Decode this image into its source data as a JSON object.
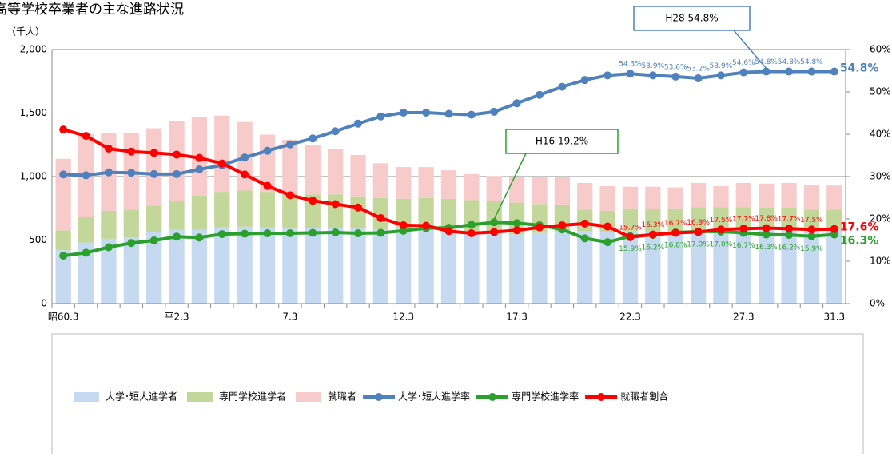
{
  "chart_data": {
    "type": "bar",
    "title": "高等学校卒業者の主な進路状況",
    "y_label": "（千人）",
    "categories": [
      "昭60.3",
      null,
      null,
      null,
      null,
      "平2.3",
      null,
      null,
      null,
      null,
      "7.3",
      null,
      null,
      null,
      null,
      "12.3",
      null,
      null,
      null,
      null,
      "17.3",
      null,
      null,
      null,
      null,
      "22.3",
      null,
      null,
      null,
      null,
      "27.3",
      null,
      null,
      null,
      "31.3"
    ],
    "ylim": [
      0,
      2000
    ],
    "yticks": [
      0,
      500,
      {
        "value": 1000,
        "label": "1,000"
      },
      {
        "value": 1500,
        "label": "1,500"
      },
      {
        "value": 2000,
        "label": "2,000"
      }
    ],
    "y2lim": [
      0,
      60
    ],
    "y2ticks": [
      {
        "value": 0,
        "label": "0%"
      },
      {
        "value": 10,
        "label": "10%"
      },
      {
        "value": 20,
        "label": "20%"
      },
      {
        "value": 30,
        "label": "30%"
      },
      {
        "value": 40,
        "label": "40%"
      },
      {
        "value": 50,
        "label": "50%"
      },
      {
        "value": 60,
        "label": "60%"
      }
    ],
    "grid": true,
    "series": [
      {
        "name": "大学･短大進学者",
        "type": "bar",
        "color": "#c5d9f1",
        "values": [
          420,
          480,
          510,
          520,
          560,
          580,
          580,
          600,
          605,
          600,
          590,
          595,
          595,
          590,
          580,
          600,
          590,
          575,
          560,
          550,
          545,
          555,
          565,
          570,
          560,
          570,
          560,
          570,
          560,
          570,
          580,
          585,
          585,
          580,
          580
        ]
      },
      {
        "name": "専門学校進学者",
        "type": "bar",
        "color": "#c4d79b",
        "values": [
          155,
          205,
          220,
          220,
          210,
          230,
          270,
          280,
          285,
          280,
          280,
          265,
          265,
          255,
          250,
          225,
          240,
          250,
          255,
          255,
          250,
          230,
          215,
          170,
          170,
          180,
          185,
          180,
          200,
          190,
          180,
          170,
          170,
          160,
          160
        ]
      },
      {
        "name": "就職者",
        "type": "bar",
        "color": "#f8cbcb",
        "values": [
          565,
          650,
          610,
          605,
          610,
          630,
          620,
          600,
          540,
          450,
          420,
          385,
          355,
          325,
          275,
          250,
          245,
          225,
          205,
          200,
          205,
          215,
          215,
          210,
          195,
          170,
          175,
          165,
          190,
          165,
          190,
          190,
          195,
          195,
          190
        ]
      },
      {
        "name": "大学･短大進学率",
        "type": "line",
        "axis": "y2",
        "color": "#4f81bd",
        "values": [
          30.5,
          30.3,
          31.0,
          30.9,
          30.6,
          30.6,
          31.7,
          32.7,
          34.5,
          36.1,
          37.6,
          39.0,
          40.7,
          42.5,
          44.2,
          45.1,
          45.1,
          44.8,
          44.6,
          45.3,
          47.3,
          49.3,
          51.2,
          52.8,
          53.9,
          54.3,
          53.9,
          53.6,
          53.2,
          53.9,
          54.6,
          54.8,
          54.8,
          54.8,
          54.8
        ],
        "value_labels": [
          null,
          null,
          null,
          null,
          null,
          null,
          null,
          null,
          null,
          null,
          null,
          null,
          null,
          null,
          null,
          null,
          null,
          null,
          null,
          null,
          null,
          null,
          null,
          null,
          null,
          "54.3%",
          "53.9%",
          "53.6%",
          "53.2%",
          "53.9%",
          "54.6%",
          "54.8%",
          "54.8%",
          "54.8%",
          "54.8%"
        ]
      },
      {
        "name": "専門学校進学率",
        "type": "line",
        "axis": "y2",
        "color": "#2ca02c",
        "values": [
          11.3,
          12.0,
          13.3,
          14.3,
          14.9,
          15.8,
          15.6,
          16.4,
          16.5,
          16.6,
          16.6,
          16.7,
          16.8,
          16.6,
          16.7,
          17.2,
          17.8,
          17.9,
          18.6,
          19.2,
          19.0,
          18.5,
          17.5,
          15.4,
          14.5,
          15.9,
          16.2,
          16.8,
          17.0,
          17.0,
          16.7,
          16.3,
          16.2,
          15.9,
          16.3
        ],
        "value_labels": [
          null,
          null,
          null,
          null,
          null,
          null,
          null,
          null,
          null,
          null,
          null,
          null,
          null,
          null,
          null,
          null,
          null,
          null,
          null,
          null,
          null,
          null,
          null,
          null,
          null,
          "15.9%",
          "16.2%",
          "16.8%",
          "17.0%",
          "17.0%",
          "16.7%",
          "16.3%",
          "16.2%",
          "15.9%",
          "16.3%"
        ]
      },
      {
        "name": "就職者割合",
        "type": "line",
        "axis": "y2",
        "color": "#ff0000",
        "values": [
          41.1,
          39.6,
          36.6,
          35.9,
          35.6,
          35.2,
          34.4,
          33.1,
          30.5,
          27.8,
          25.6,
          24.3,
          23.5,
          22.7,
          20.2,
          18.5,
          18.4,
          17.1,
          16.6,
          16.9,
          17.3,
          18.0,
          18.5,
          18.9,
          18.2,
          15.7,
          16.3,
          16.7,
          16.9,
          17.5,
          17.7,
          17.8,
          17.7,
          17.5,
          17.6
        ],
        "value_labels": [
          null,
          null,
          null,
          null,
          null,
          null,
          null,
          null,
          null,
          null,
          null,
          null,
          null,
          null,
          null,
          null,
          null,
          null,
          null,
          null,
          null,
          null,
          null,
          null,
          null,
          "15.7%",
          "16.3%",
          "16.7%",
          "16.9%",
          "17.5%",
          "17.7%",
          "17.8%",
          "17.7%",
          "17.5%",
          "17.6%"
        ]
      }
    ],
    "annotations": [
      {
        "text": "H28  54.8%",
        "series": 3,
        "index": 31
      },
      {
        "text": "H16  19.2%",
        "series": 4,
        "index": 19
      }
    ]
  }
}
